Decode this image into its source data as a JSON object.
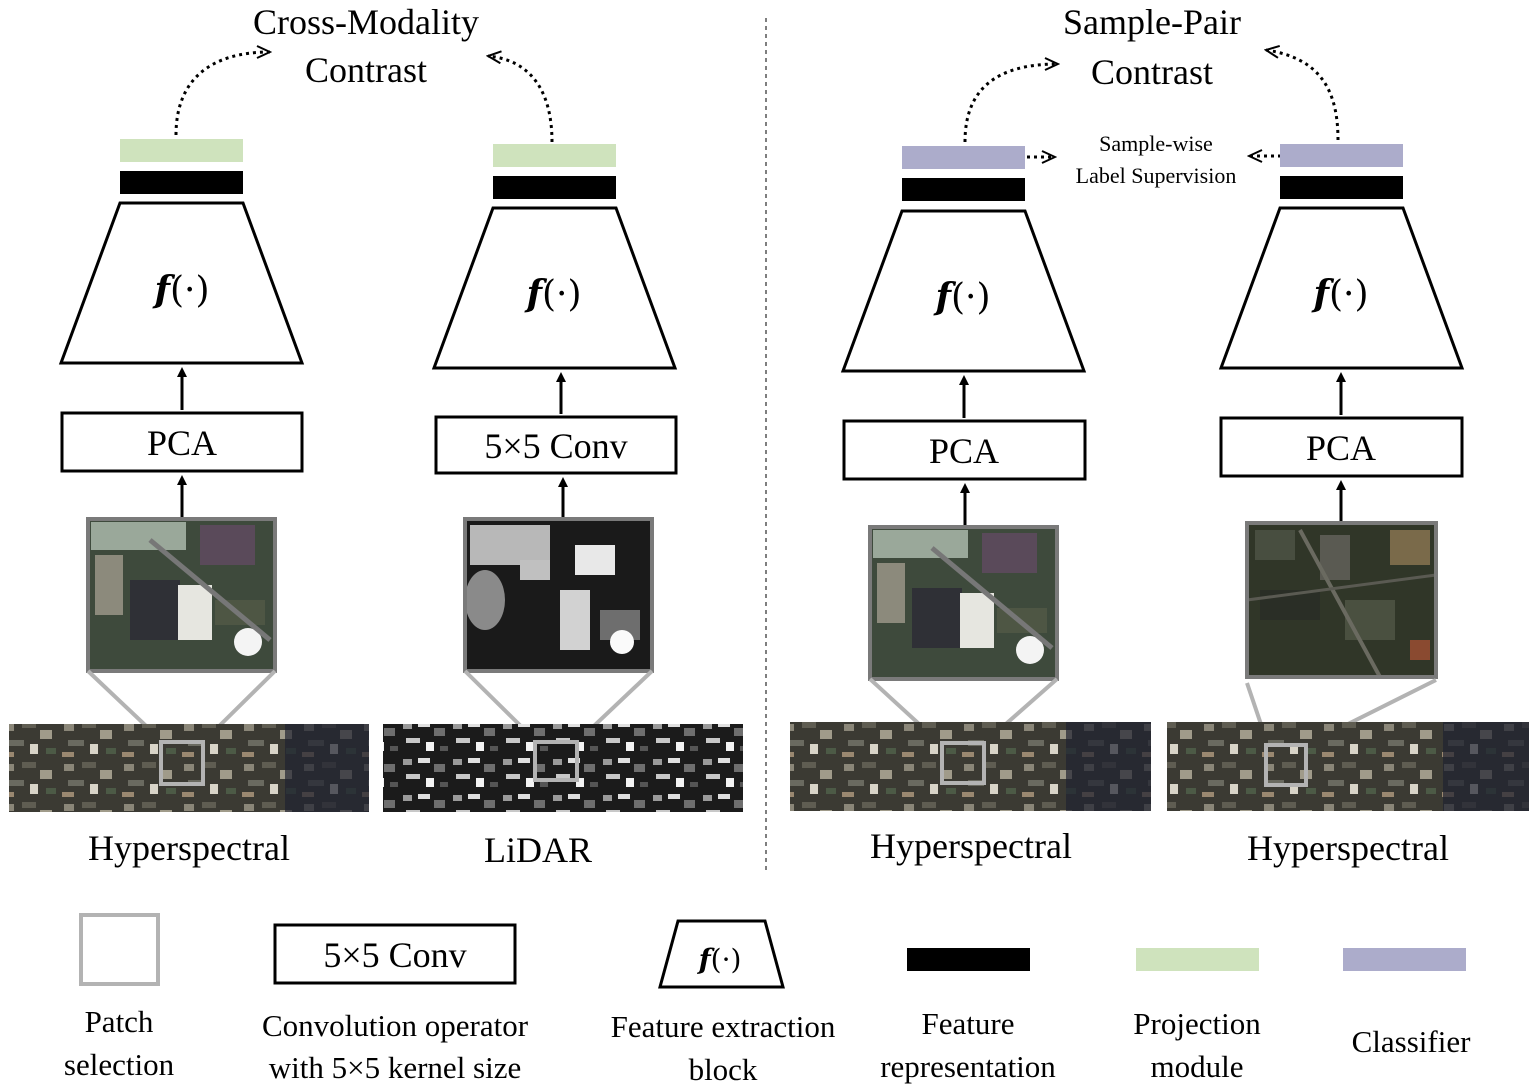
{
  "colors": {
    "projection": "#cfe3bd",
    "classifier": "#acaccb",
    "feature": "#000000",
    "patch_border": "#7a7a7a",
    "patch_line": "#b3b3b3"
  },
  "left_panel": {
    "title_line1": "Cross-Modality",
    "title_line2": "Contrast",
    "branch1": {
      "op": "PCA",
      "func": "f",
      "func_arg": "(·)",
      "modality": "Hyperspectral"
    },
    "branch2": {
      "op": "5×5 Conv",
      "func": "f",
      "func_arg": "(·)",
      "modality": "LiDAR"
    }
  },
  "right_panel": {
    "title_line1": "Sample-Pair",
    "title_line2": "Contrast",
    "supervision_line1": "Sample-wise",
    "supervision_line2": "Label Supervision",
    "branch1": {
      "op": "PCA",
      "func": "f",
      "func_arg": "(·)",
      "modality": "Hyperspectral"
    },
    "branch2": {
      "op": "PCA",
      "func": "f",
      "func_arg": "(·)",
      "modality": "Hyperspectral"
    }
  },
  "legend": {
    "patch": {
      "line1": "Patch",
      "line2": "selection"
    },
    "conv": {
      "box_text": "5×5 Conv",
      "line1": "Convolution operator",
      "line2": "with 5×5 kernel size"
    },
    "block": {
      "func": "f",
      "func_arg": "(·)",
      "line1": "Feature extraction",
      "line2": "block"
    },
    "feature": {
      "line1": "Feature",
      "line2": "representation"
    },
    "projection": {
      "line1": "Projection",
      "line2": "module"
    },
    "classifier": {
      "line1": "Classifier"
    }
  }
}
